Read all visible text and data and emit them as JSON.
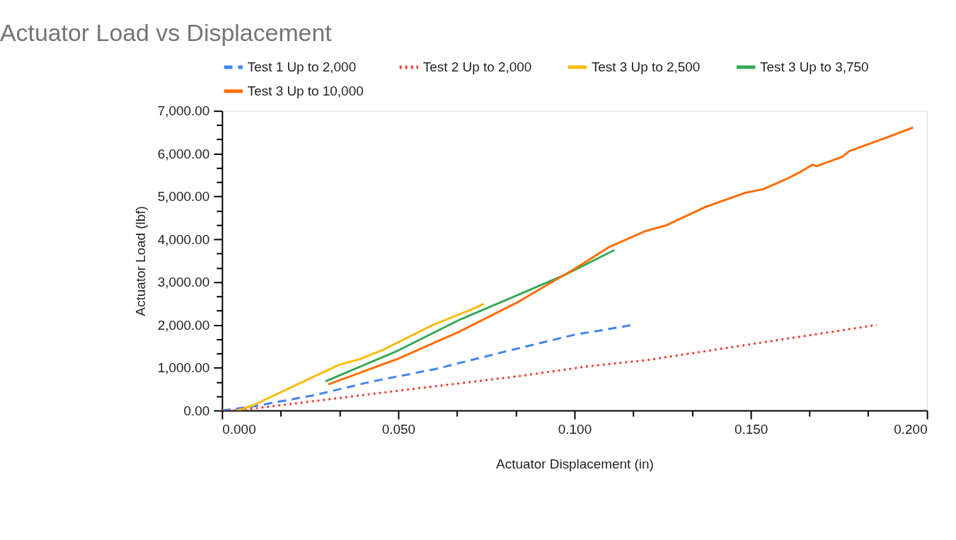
{
  "chart_data": {
    "type": "line",
    "title": "Actuator Load vs Displacement",
    "xlabel": "Actuator Displacement (in)",
    "ylabel": "Actuator Load (lbf)",
    "series": [
      {
        "name": "Test 1 Up to 2,000",
        "color": "#4285f4",
        "line_style": "dashed",
        "x": [
          0.0,
          0.009,
          0.0262,
          0.0426,
          0.0605,
          0.0809,
          0.1004,
          0.1066,
          0.1164
        ],
        "values": [
          0,
          100,
          360,
          680,
          970,
          1390,
          1780,
          1860,
          2000
        ]
      },
      {
        "name": "Test 2 Up to 2,000",
        "color": "#ea4335",
        "line_style": "dotted",
        "x": [
          0.0,
          0.0043,
          0.0457,
          0.0848,
          0.1043,
          0.1207,
          0.1857
        ],
        "values": [
          0,
          0,
          420,
          810,
          1040,
          1180,
          2000
        ]
      },
      {
        "name": "Test 3 Up to 2,500",
        "color": "#fbbc04",
        "line_style": "solid",
        "x": [
          0.0043,
          0.009,
          0.0223,
          0.0332,
          0.039,
          0.0457,
          0.0598,
          0.0707,
          0.0742
        ],
        "values": [
          0,
          130,
          650,
          1070,
          1200,
          1420,
          2000,
          2360,
          2490
        ]
      },
      {
        "name": "Test 3 Up to 3,750",
        "color": "#34a853",
        "line_style": "solid",
        "x": [
          0.0293,
          0.0496,
          0.0676,
          0.0848,
          0.098,
          0.1113
        ],
        "values": [
          680,
          1390,
          2130,
          2730,
          3200,
          3750
        ]
      },
      {
        "name": "Test 3 Up to 10,000",
        "color": "#ff6d01",
        "line_style": "solid",
        "x": [
          0.0301,
          0.0496,
          0.0672,
          0.0836,
          0.1004,
          0.1098,
          0.12,
          0.1258,
          0.1369,
          0.1486,
          0.1535,
          0.1604,
          0.1635,
          0.1654,
          0.1674,
          0.1688,
          0.176,
          0.1779,
          0.1889,
          0.196
        ],
        "values": [
          610,
          1200,
          1840,
          2520,
          3330,
          3820,
          4190,
          4320,
          4750,
          5090,
          5170,
          5420,
          5550,
          5640,
          5740,
          5710,
          5930,
          6060,
          6390,
          6610
        ]
      }
    ],
    "xlim": [
      0,
      0.2
    ],
    "ylim": [
      0,
      7000
    ],
    "xticks": [
      {
        "value": 0,
        "label": "0.000"
      },
      {
        "value": 0.0167,
        "label": null
      },
      {
        "value": 0.0333,
        "label": null
      },
      {
        "value": 0.05,
        "label": "0.050"
      },
      {
        "value": 0.0667,
        "label": null
      },
      {
        "value": 0.0833,
        "label": null
      },
      {
        "value": 0.1,
        "label": "0.100"
      },
      {
        "value": 0.1167,
        "label": null
      },
      {
        "value": 0.1333,
        "label": null
      },
      {
        "value": 0.15,
        "label": "0.150"
      },
      {
        "value": 0.1667,
        "label": null
      },
      {
        "value": 0.1833,
        "label": null
      },
      {
        "value": 0.2,
        "label": "0.200"
      }
    ],
    "yticks": [
      {
        "value": 0,
        "label": "0.00"
      },
      {
        "value": 333,
        "label": null
      },
      {
        "value": 667,
        "label": null
      },
      {
        "value": 1000,
        "label": "1,000.00"
      },
      {
        "value": 1333,
        "label": null
      },
      {
        "value": 1667,
        "label": null
      },
      {
        "value": 2000,
        "label": "2,000.00"
      },
      {
        "value": 2333,
        "label": null
      },
      {
        "value": 2667,
        "label": null
      },
      {
        "value": 3000,
        "label": "3,000.00"
      },
      {
        "value": 3333,
        "label": null
      },
      {
        "value": 3667,
        "label": null
      },
      {
        "value": 4000,
        "label": "4,000.00"
      },
      {
        "value": 4333,
        "label": null
      },
      {
        "value": 4667,
        "label": null
      },
      {
        "value": 5000,
        "label": "5,000.00"
      },
      {
        "value": 5333,
        "label": null
      },
      {
        "value": 5667,
        "label": null
      },
      {
        "value": 6000,
        "label": "6,000.00"
      },
      {
        "value": 6333,
        "label": null
      },
      {
        "value": 6667,
        "label": null
      },
      {
        "value": 7000,
        "label": "7,000.00"
      }
    ],
    "legend": "top",
    "grid": false,
    "marker": "none"
  }
}
